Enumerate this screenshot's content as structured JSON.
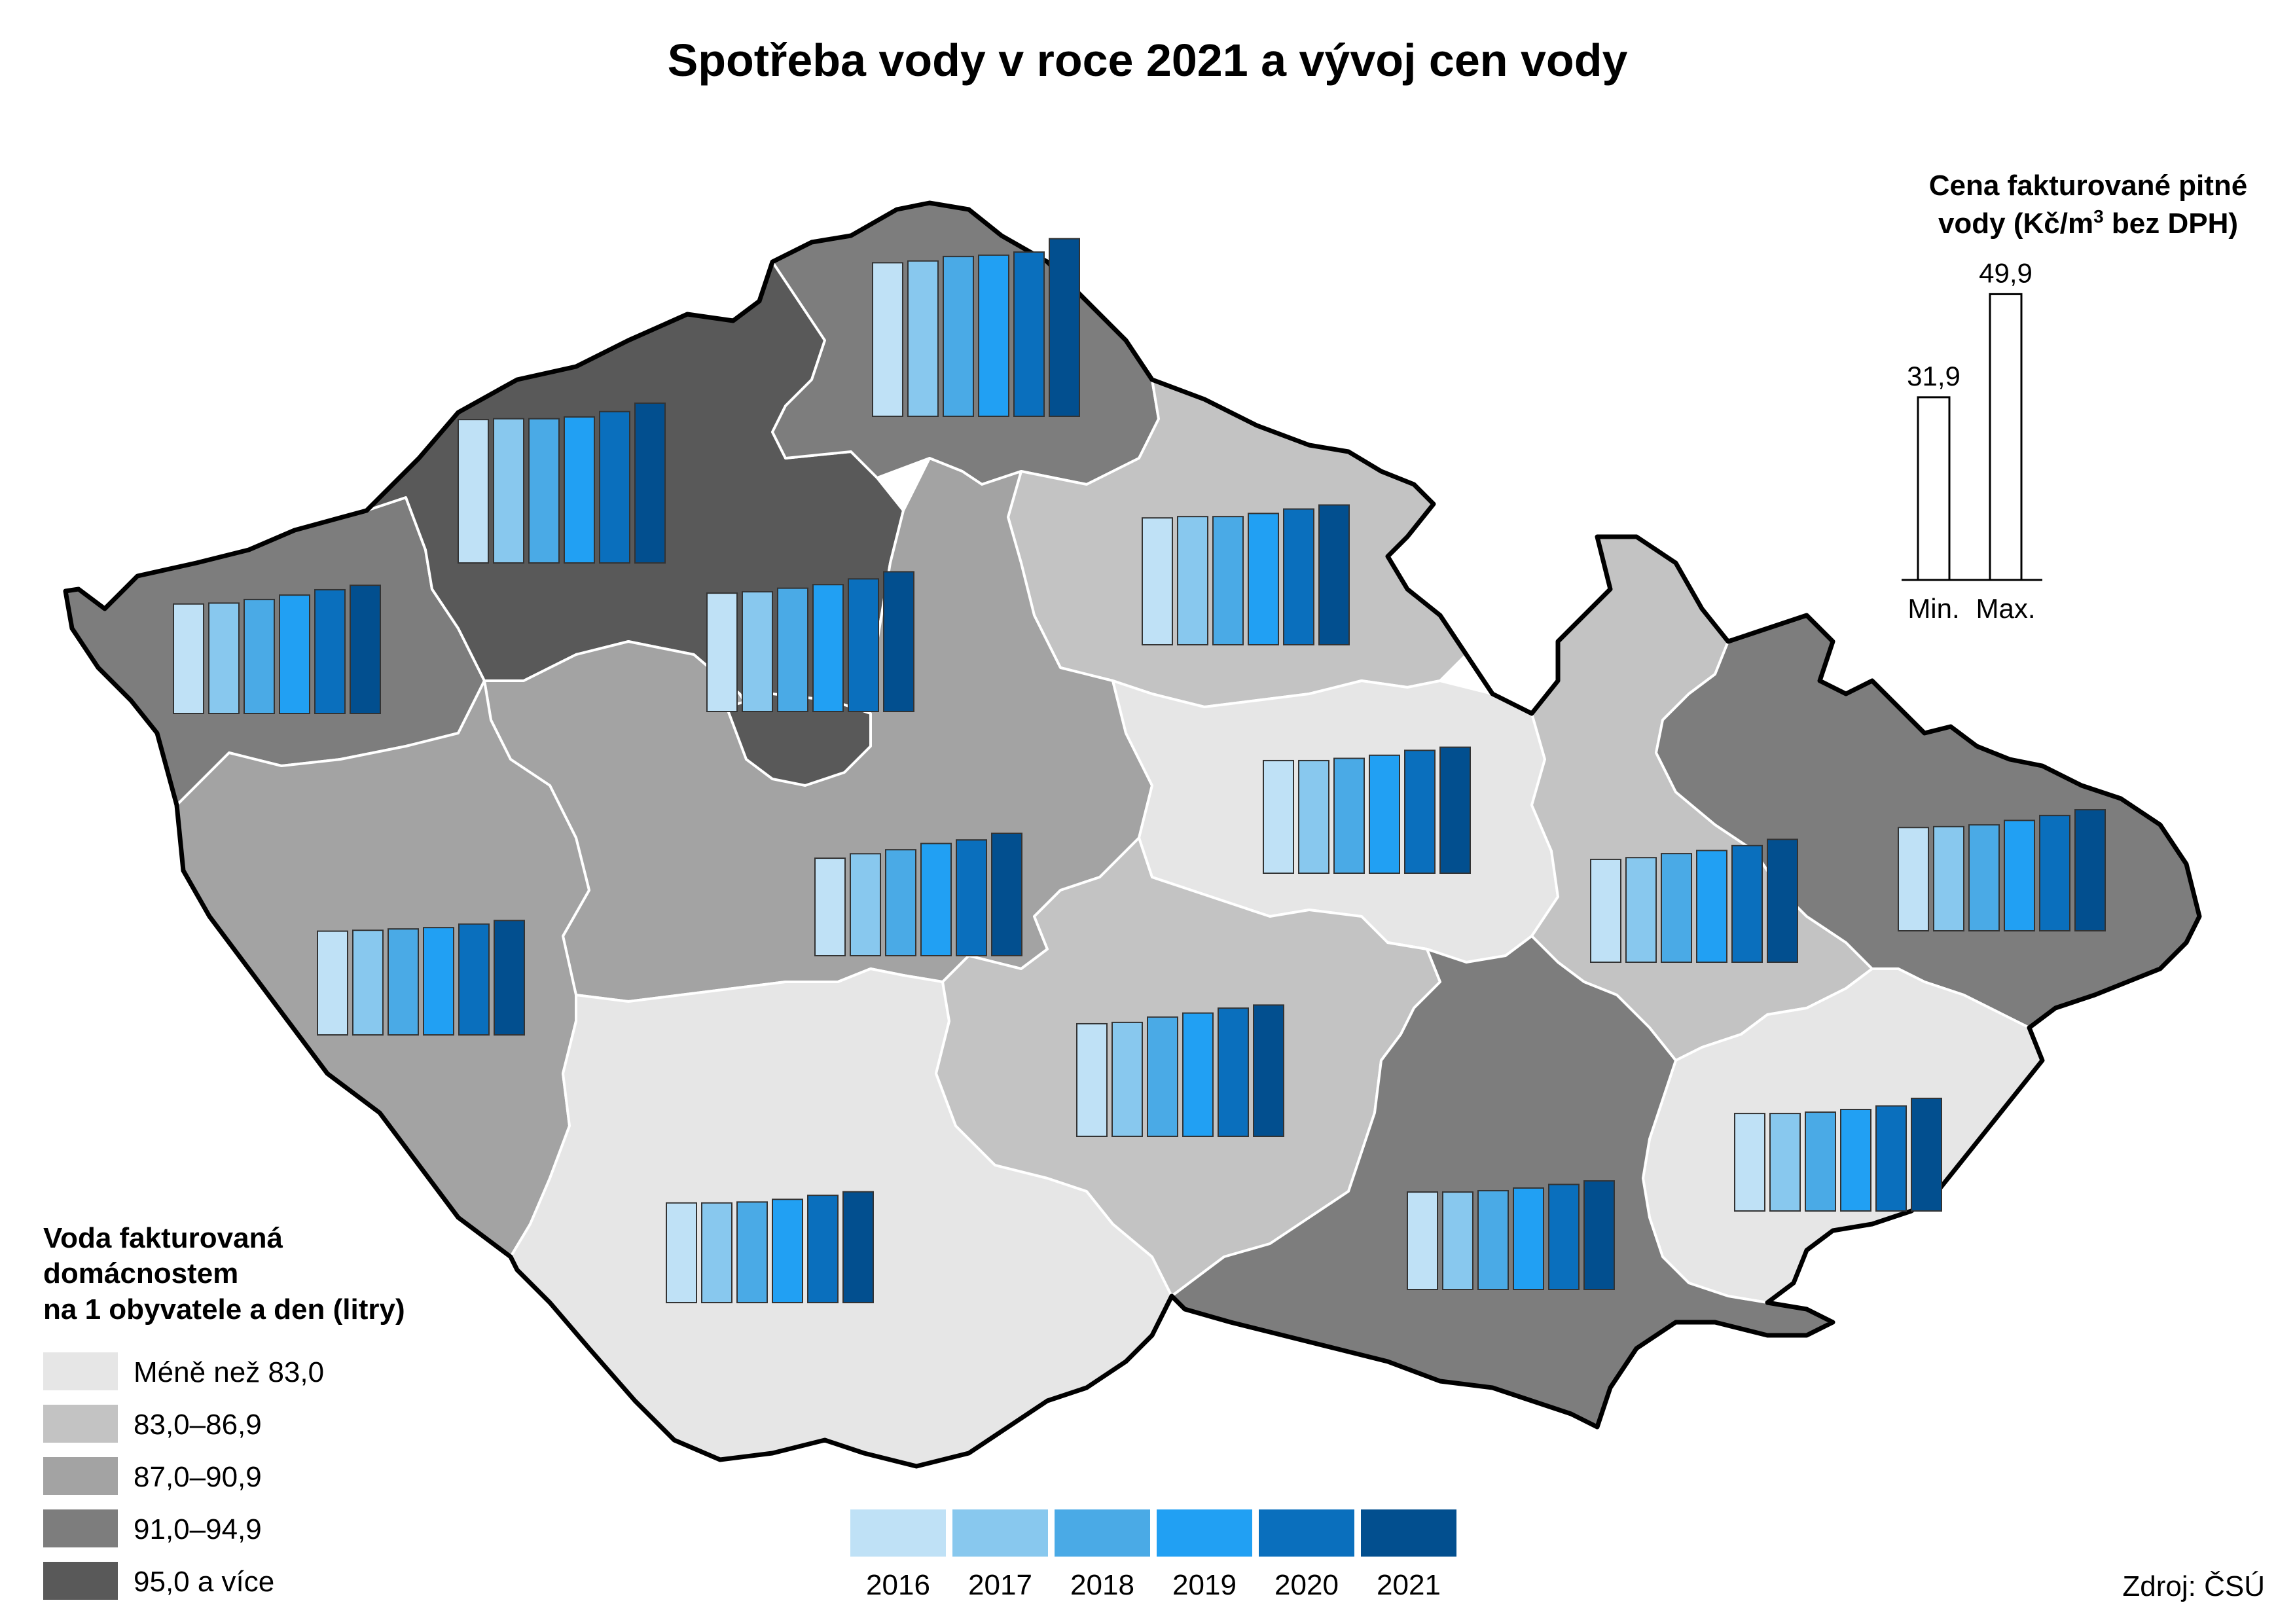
{
  "title": "Spotřeba vody v roce 2021 a vývoj cen vody",
  "source": "Zdroj: ČSÚ",
  "price_panel": {
    "title_line1": "Cena fakturované pitné",
    "title_line2_prefix": "vody (Kč/m",
    "title_line2_sup": "3",
    "title_line2_suffix": " bez DPH)",
    "bars": [
      {
        "label": "Min.",
        "value": 31.9,
        "value_text": "31,9"
      },
      {
        "label": "Max.",
        "value": 49.9,
        "value_text": "49,9"
      }
    ]
  },
  "legend": {
    "title_lines": [
      "Voda fakturovaná",
      "domácnostem",
      "na 1 obyvatele a den (litry)"
    ],
    "classes": [
      {
        "label": "Méně než 83,0",
        "color": "#e6e6e6"
      },
      {
        "label": "83,0–86,9",
        "color": "#c3c3c3"
      },
      {
        "label": "87,0–90,9",
        "color": "#a3a3a3"
      },
      {
        "label": "91,0–94,9",
        "color": "#7d7d7d"
      },
      {
        "label": "95,0 a více",
        "color": "#595959"
      }
    ]
  },
  "years": [
    {
      "label": "2016",
      "color": "#bfe1f6"
    },
    {
      "label": "2017",
      "color": "#88c8ee"
    },
    {
      "label": "2018",
      "color": "#4aaae6"
    },
    {
      "label": "2019",
      "color": "#21a0f3"
    },
    {
      "label": "2020",
      "color": "#0a6fbd"
    },
    {
      "label": "2021",
      "color": "#024f8f"
    }
  ],
  "region_price_bars": [
    {
      "region_class": 3,
      "prices": [
        34.6,
        34.8,
        35.6,
        36.6,
        37.8,
        38.8
      ]
    },
    {
      "region_class": 4,
      "prices": [
        42.2,
        42.4,
        42.4,
        42.8,
        44.0,
        45.9
      ]
    },
    {
      "region_class": 3,
      "prices": [
        44.5,
        44.9,
        45.9,
        46.2,
        46.9,
        49.9
      ]
    },
    {
      "region_class": 2,
      "prices": [
        38.5,
        38.8,
        38.8,
        39.5,
        40.5,
        41.4
      ]
    },
    {
      "region_class": 2,
      "prices": [
        36.6,
        36.9,
        37.7,
        38.5,
        39.8,
        41.4
      ]
    },
    {
      "region_class": 1,
      "prices": [
        35.3,
        35.3,
        35.8,
        36.5,
        37.6,
        38.3
      ]
    },
    {
      "region_class": 0,
      "prices": [
        31.9,
        32.9,
        33.8,
        35.2,
        36.0,
        37.5
      ]
    },
    {
      "region_class": 2,
      "prices": [
        35.3,
        35.6,
        36.8,
        37.7,
        38.8,
        39.5
      ]
    },
    {
      "region_class": 1,
      "prices": [
        33.3,
        33.5,
        33.8,
        34.1,
        34.9,
        35.7
      ]
    },
    {
      "region_class": 3,
      "prices": [
        31.9,
        31.9,
        32.2,
        32.8,
        33.6,
        34.4
      ]
    },
    {
      "region_class": 1,
      "prices": [
        32.4,
        32.4,
        32.6,
        33.2,
        34.1,
        34.9
      ]
    },
    {
      "region_class": 0,
      "prices": [
        33.1,
        33.5,
        34.4,
        35.1,
        36.2,
        37.6
      ]
    },
    {
      "region_class": 0,
      "prices": [
        31.9,
        31.9,
        32.2,
        32.8,
        33.6,
        35.3
      ]
    },
    {
      "region_class": 3,
      "prices": [
        33.2,
        33.4,
        33.8,
        34.8,
        35.9,
        37.2
      ]
    }
  ]
}
